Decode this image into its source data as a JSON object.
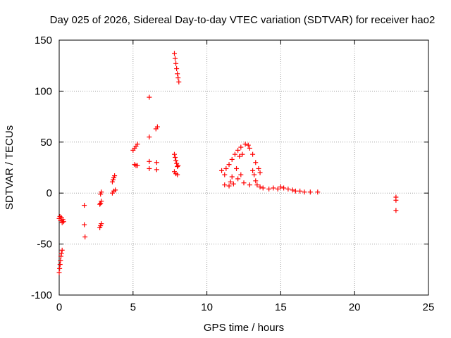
{
  "chart_data": {
    "type": "scatter",
    "title": "Day 025 of 2026, Sidereal Day-to-day VTEC variation (SDTVAR) for receiver hao2",
    "xlabel": "GPS time / hours",
    "ylabel": "SDTVAR / TECUs",
    "xlim": [
      0,
      25
    ],
    "ylim": [
      -100,
      150
    ],
    "xticks": [
      0,
      5,
      10,
      15,
      20,
      25
    ],
    "yticks": [
      -100,
      -50,
      0,
      50,
      100,
      150
    ],
    "grid": true,
    "marker": "+",
    "marker_color": "#ff0000",
    "series": [
      {
        "name": "SDTVAR",
        "points": [
          [
            0.0,
            -25
          ],
          [
            0.05,
            -23
          ],
          [
            0.1,
            -27
          ],
          [
            0.15,
            -24
          ],
          [
            0.2,
            -29
          ],
          [
            0.25,
            -26
          ],
          [
            0.3,
            -28
          ],
          [
            0.0,
            -78
          ],
          [
            0.03,
            -74
          ],
          [
            0.06,
            -70
          ],
          [
            0.09,
            -66
          ],
          [
            0.12,
            -62
          ],
          [
            0.15,
            -59
          ],
          [
            0.2,
            -56
          ],
          [
            1.7,
            -12
          ],
          [
            1.7,
            -31
          ],
          [
            1.75,
            -43
          ],
          [
            2.75,
            -34
          ],
          [
            2.8,
            -32
          ],
          [
            2.85,
            -30
          ],
          [
            2.75,
            -11
          ],
          [
            2.8,
            -10
          ],
          [
            2.85,
            -8
          ],
          [
            2.8,
            -1
          ],
          [
            2.85,
            1
          ],
          [
            3.6,
            0
          ],
          [
            3.7,
            2
          ],
          [
            3.8,
            3
          ],
          [
            3.6,
            11
          ],
          [
            3.65,
            13
          ],
          [
            3.7,
            15
          ],
          [
            3.75,
            17
          ],
          [
            5.0,
            42
          ],
          [
            5.1,
            44
          ],
          [
            5.2,
            46
          ],
          [
            5.3,
            48
          ],
          [
            5.1,
            28
          ],
          [
            5.2,
            27
          ],
          [
            5.3,
            27
          ],
          [
            6.1,
            94
          ],
          [
            6.1,
            55
          ],
          [
            6.1,
            31
          ],
          [
            6.1,
            24
          ],
          [
            6.6,
            23
          ],
          [
            6.6,
            30
          ],
          [
            6.55,
            63
          ],
          [
            6.65,
            65
          ],
          [
            7.8,
            137
          ],
          [
            7.85,
            132
          ],
          [
            7.9,
            127
          ],
          [
            7.95,
            122
          ],
          [
            8.0,
            117
          ],
          [
            8.05,
            113
          ],
          [
            8.1,
            109
          ],
          [
            7.8,
            38
          ],
          [
            7.85,
            35
          ],
          [
            7.9,
            32
          ],
          [
            7.95,
            29
          ],
          [
            8.0,
            26
          ],
          [
            8.05,
            27
          ],
          [
            7.8,
            21
          ],
          [
            7.9,
            19
          ],
          [
            8.0,
            18
          ],
          [
            11.0,
            22
          ],
          [
            11.2,
            18
          ],
          [
            11.3,
            24
          ],
          [
            11.5,
            28
          ],
          [
            11.7,
            33
          ],
          [
            11.9,
            38
          ],
          [
            12.1,
            42
          ],
          [
            12.3,
            45
          ],
          [
            12.6,
            48
          ],
          [
            12.8,
            47
          ],
          [
            12.9,
            44
          ],
          [
            13.1,
            38
          ],
          [
            13.3,
            30
          ],
          [
            13.5,
            24
          ],
          [
            13.6,
            20
          ],
          [
            11.2,
            8
          ],
          [
            11.5,
            7
          ],
          [
            11.8,
            9
          ],
          [
            12.1,
            14
          ],
          [
            12.3,
            18
          ],
          [
            12.0,
            24
          ],
          [
            11.7,
            16
          ],
          [
            11.6,
            11
          ],
          [
            12.4,
            38
          ],
          [
            12.2,
            36
          ],
          [
            12.5,
            10
          ],
          [
            12.9,
            8
          ],
          [
            13.1,
            22
          ],
          [
            13.2,
            18
          ],
          [
            13.3,
            12
          ],
          [
            13.4,
            8
          ],
          [
            13.6,
            6
          ],
          [
            13.8,
            5
          ],
          [
            14.2,
            4
          ],
          [
            14.5,
            5
          ],
          [
            14.8,
            4
          ],
          [
            15.0,
            6
          ],
          [
            15.2,
            5
          ],
          [
            15.5,
            4
          ],
          [
            15.8,
            3
          ],
          [
            16.0,
            2
          ],
          [
            16.3,
            2
          ],
          [
            16.6,
            1
          ],
          [
            17.0,
            1
          ],
          [
            17.5,
            1
          ],
          [
            22.8,
            -4
          ],
          [
            22.8,
            -7
          ],
          [
            22.8,
            -17
          ]
        ]
      }
    ]
  }
}
